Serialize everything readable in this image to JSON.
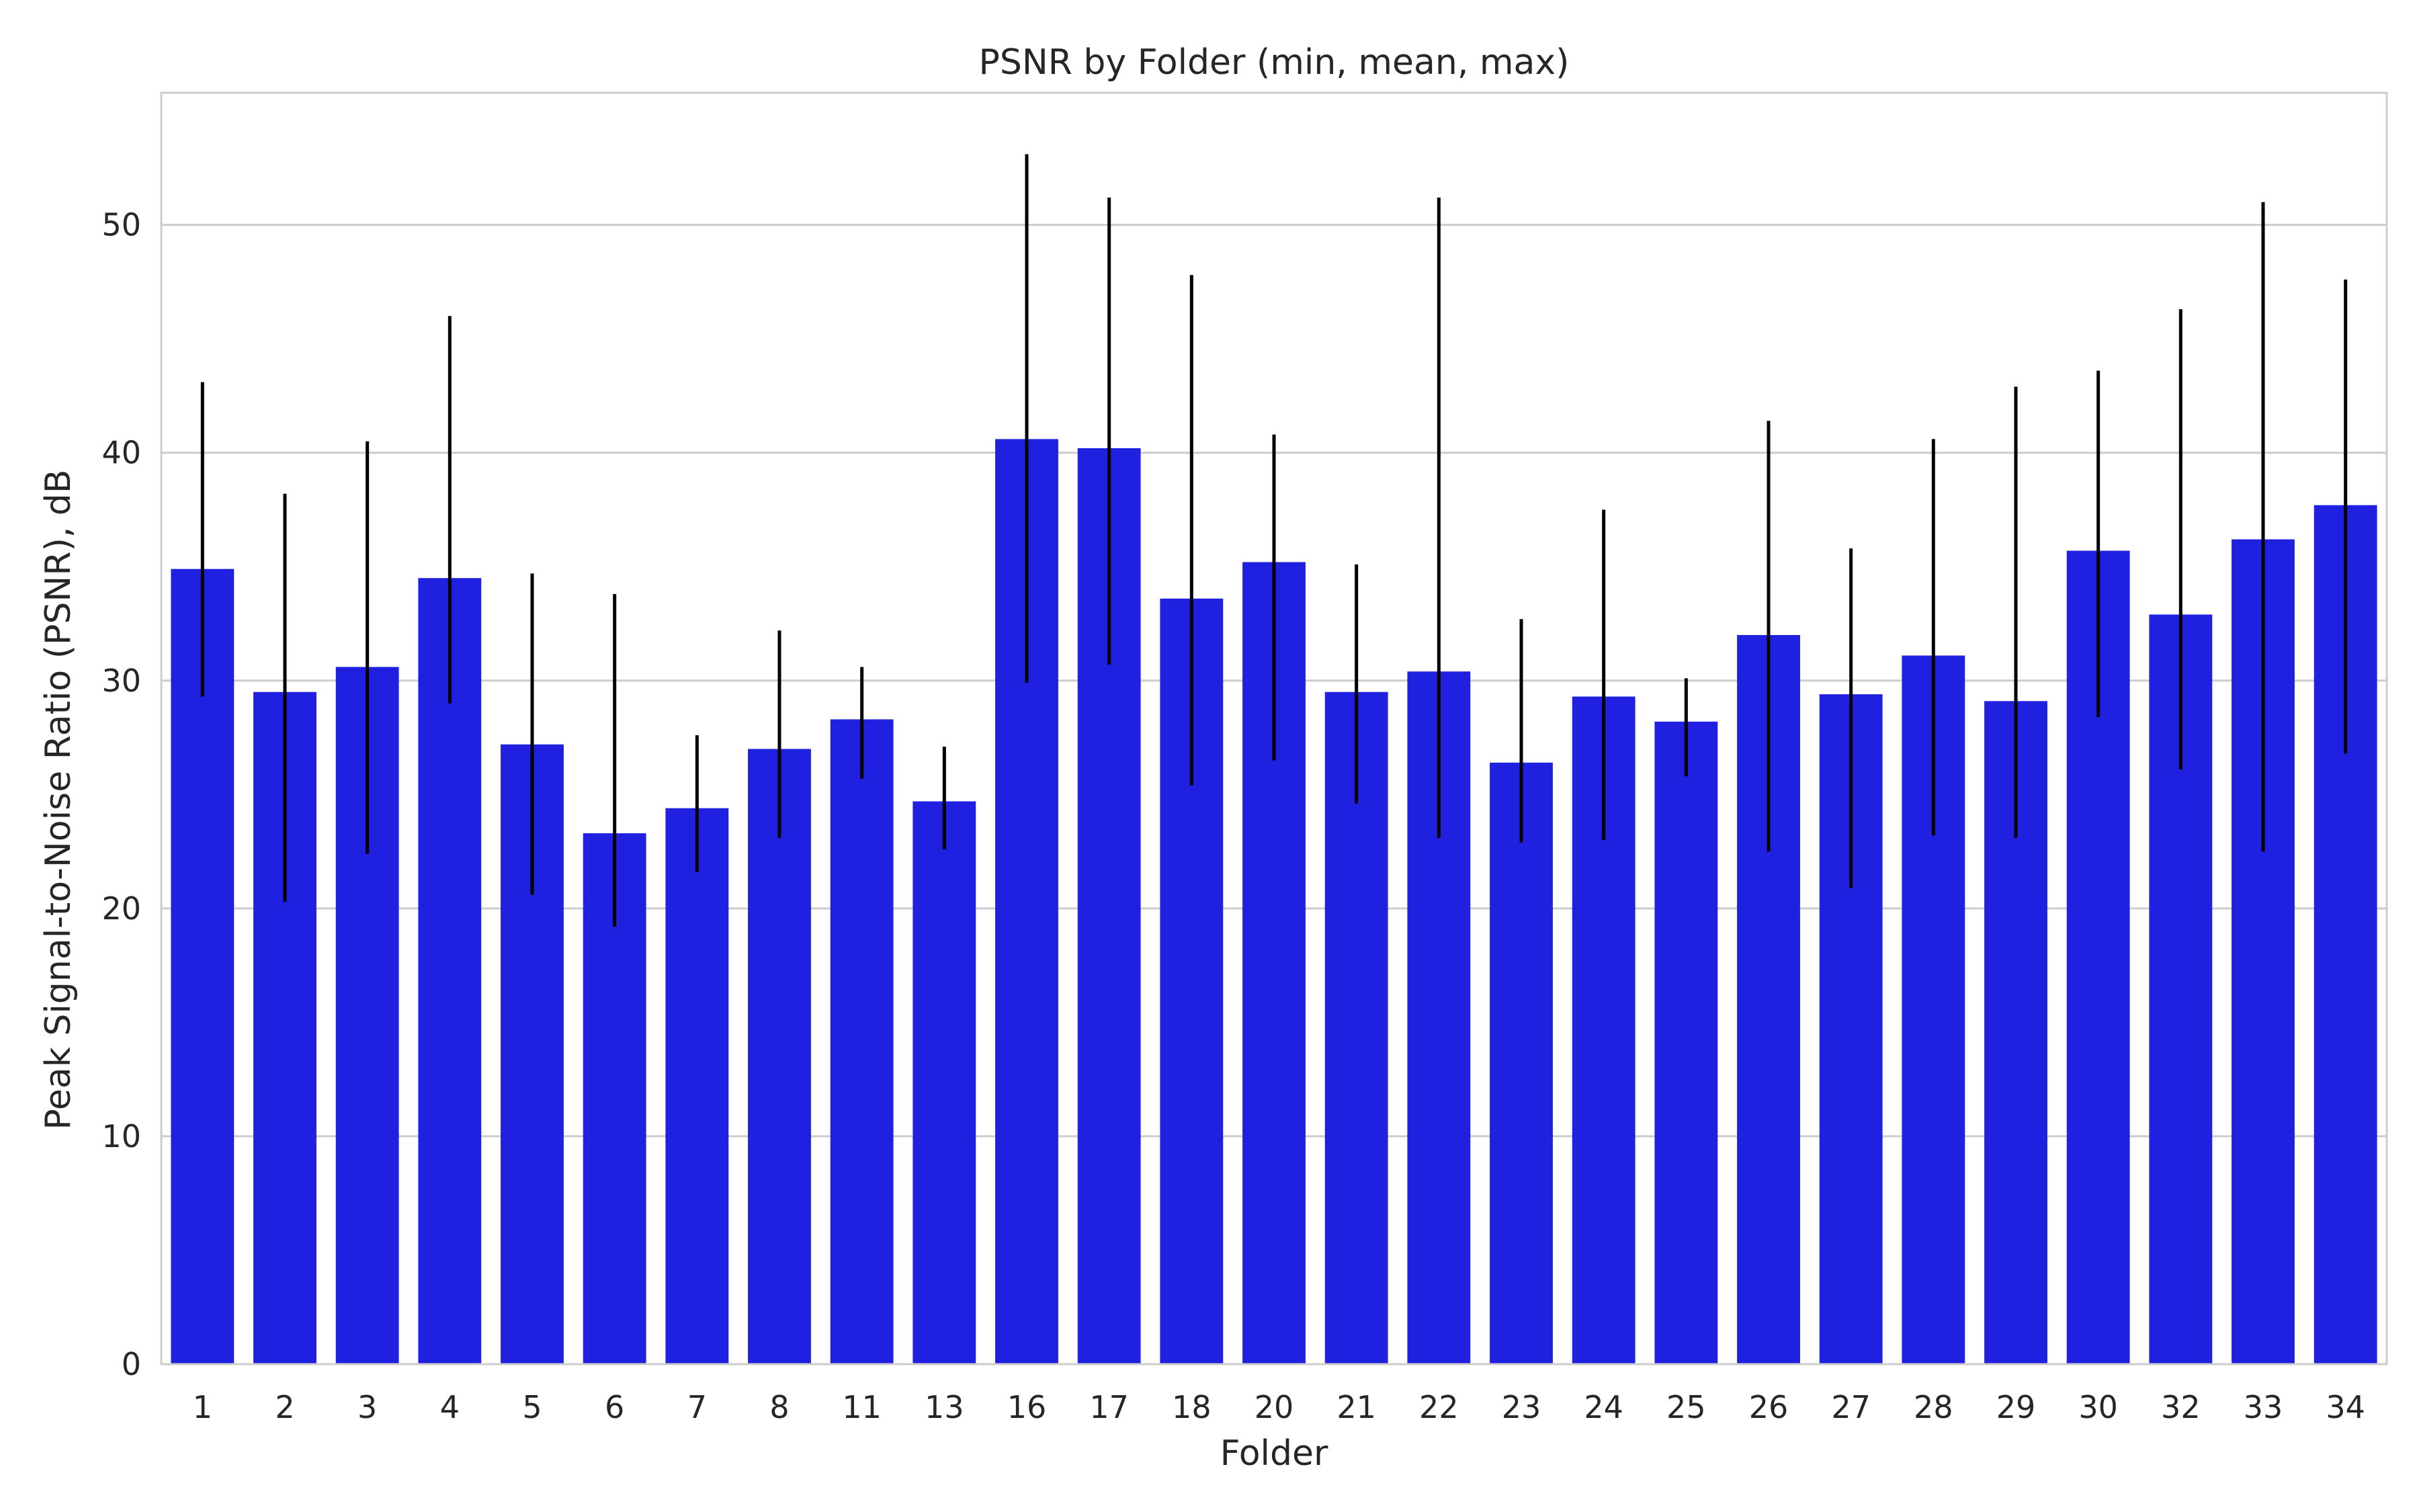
{
  "chart_data": {
    "type": "bar",
    "title": "PSNR by Folder (min, mean, max)",
    "xlabel": "Folder",
    "ylabel": "Peak Signal-to-Noise Ratio (PSNR), dB",
    "ylim": [
      0,
      55.8
    ],
    "yticks": [
      0,
      10,
      20,
      30,
      40,
      50
    ],
    "grid": true,
    "bar_color": "#2020e0",
    "errorbar_color": "#000000",
    "categories": [
      "1",
      "2",
      "3",
      "4",
      "5",
      "6",
      "7",
      "8",
      "11",
      "13",
      "16",
      "17",
      "18",
      "20",
      "21",
      "22",
      "23",
      "24",
      "25",
      "26",
      "27",
      "28",
      "29",
      "30",
      "32",
      "33",
      "34"
    ],
    "mean": [
      34.9,
      29.5,
      30.6,
      34.5,
      27.2,
      23.3,
      24.4,
      27.0,
      28.3,
      24.7,
      40.6,
      40.2,
      33.6,
      35.2,
      29.5,
      30.4,
      26.4,
      29.3,
      28.2,
      32.0,
      29.4,
      31.1,
      29.1,
      35.7,
      32.9,
      36.2,
      37.7
    ],
    "min": [
      29.3,
      20.3,
      22.4,
      29.0,
      20.6,
      19.2,
      21.6,
      23.1,
      25.7,
      22.6,
      29.9,
      30.7,
      25.4,
      26.5,
      24.6,
      23.1,
      22.9,
      23.0,
      25.8,
      22.5,
      20.9,
      23.2,
      23.1,
      28.4,
      26.1,
      22.5,
      26.8
    ],
    "max": [
      43.1,
      38.2,
      40.5,
      46.0,
      34.7,
      33.8,
      27.6,
      32.2,
      30.6,
      27.1,
      53.1,
      51.2,
      47.8,
      40.8,
      35.1,
      51.2,
      32.7,
      37.5,
      30.1,
      41.4,
      35.8,
      40.6,
      42.9,
      43.6,
      46.3,
      51.0,
      47.6
    ]
  }
}
